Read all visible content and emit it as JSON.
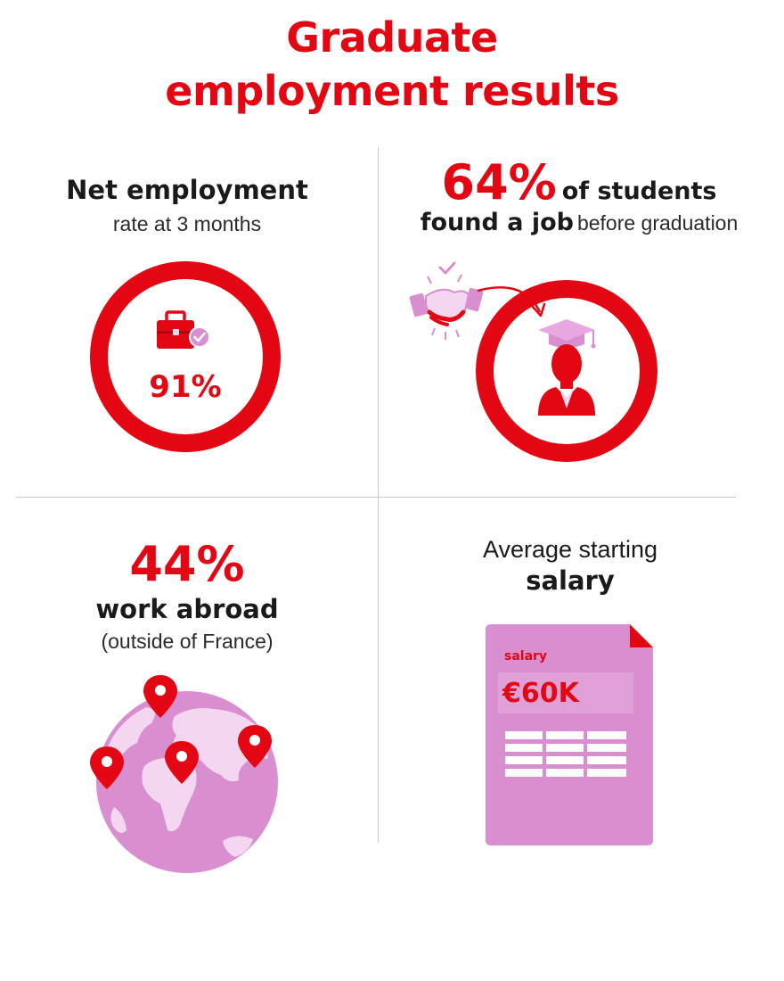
{
  "header": {
    "title_line1": "Graduate",
    "title_line2": "employment results"
  },
  "net_employment": {
    "heading": "Net employment",
    "subheading": "rate at 3 months",
    "value": "91%",
    "ring_fraction": 0.91,
    "icon": "briefcase-check-icon"
  },
  "found_job": {
    "value": "64%",
    "text_bold": "of students",
    "text_bold2": "found a job",
    "text_regular": "before graduation",
    "icons": [
      "handshake-icon",
      "graduate-icon"
    ]
  },
  "work_abroad": {
    "value": "44%",
    "label": "work abroad",
    "sublabel": "(outside of France)",
    "icons": [
      "globe-icon",
      "map-pin-icon"
    ]
  },
  "salary": {
    "label_top": "Average starting",
    "label_bold": "salary",
    "doc_label": "salary",
    "doc_value": "€60K",
    "icon": "salary-document-icon"
  },
  "colors": {
    "accent": "#e30613",
    "pink": "#d98fcf",
    "light_pink": "#f3d6ef",
    "dark": "#1a1a1a"
  }
}
